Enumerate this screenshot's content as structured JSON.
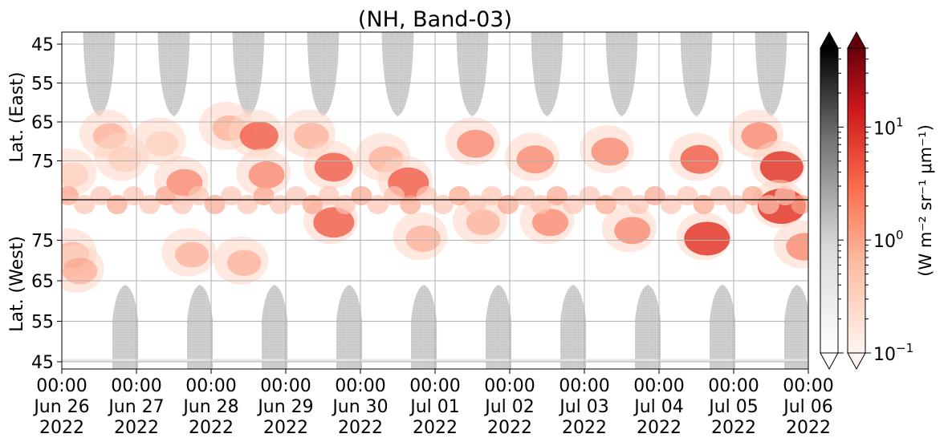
{
  "chart_data": {
    "type": "heatmap",
    "title": "(NH, Band-03)",
    "ylabel_top": "Lat. (East)",
    "ylabel_bottom": "Lat. (West)",
    "y_ticks_top": [
      "45",
      "55",
      "65",
      "75"
    ],
    "y_ticks_bottom": [
      "75",
      "65",
      "55",
      "45"
    ],
    "x_ticks": [
      {
        "time": "00:00",
        "date": "Jun 26",
        "year": "2022"
      },
      {
        "time": "00:00",
        "date": "Jun 27",
        "year": "2022"
      },
      {
        "time": "00:00",
        "date": "Jun 28",
        "year": "2022"
      },
      {
        "time": "00:00",
        "date": "Jun 29",
        "year": "2022"
      },
      {
        "time": "00:00",
        "date": "Jun 30",
        "year": "2022"
      },
      {
        "time": "00:00",
        "date": "Jul 01",
        "year": "2022"
      },
      {
        "time": "00:00",
        "date": "Jul 02",
        "year": "2022"
      },
      {
        "time": "00:00",
        "date": "Jul 03",
        "year": "2022"
      },
      {
        "time": "00:00",
        "date": "Jul 04",
        "year": "2022"
      },
      {
        "time": "00:00",
        "date": "Jul 05",
        "year": "2022"
      },
      {
        "time": "00:00",
        "date": "Jul 06",
        "year": "2022"
      }
    ],
    "grid": true,
    "colorbar": {
      "label": "(W m⁻² sr⁻¹ μm⁻¹)",
      "scale": "log",
      "range": [
        0.1,
        50
      ],
      "ticks": [
        {
          "base": "10",
          "exp": "−1",
          "value": 0.1
        },
        {
          "base": "10",
          "exp": "0",
          "value": 1
        },
        {
          "base": "10",
          "exp": "1",
          "value": 10
        }
      ],
      "cmap_gray": "Greys",
      "cmap_red": "Reds"
    },
    "colors": {
      "gray_mask": "#c8c8c8",
      "red_low": "#fee0d2",
      "red_mid": "#fb6a4a",
      "red_high": "#cb181d",
      "grid": "#b0b0b0"
    },
    "sunlit_lobes_top": [
      0.5,
      1.5,
      2.5,
      3.5,
      4.5,
      5.5,
      6.5,
      7.5,
      8.5,
      9.5
    ],
    "sunlit_lobes_bottom": [
      0.85,
      1.85,
      2.85,
      3.85,
      4.85,
      5.85,
      6.85,
      7.85,
      8.85,
      9.85
    ],
    "emission_clusters": [
      {
        "day": 0.1,
        "side": "top",
        "lat": 78,
        "intensity": 1.2
      },
      {
        "day": 0.1,
        "side": "bottom",
        "lat": 72,
        "intensity": 2.0
      },
      {
        "day": 0.2,
        "side": "bottom",
        "lat": 68,
        "intensity": 2.5
      },
      {
        "day": 0.6,
        "side": "top",
        "lat": 68,
        "intensity": 2.0
      },
      {
        "day": 0.8,
        "side": "top",
        "lat": 74,
        "intensity": 1.8
      },
      {
        "day": 1.3,
        "side": "top",
        "lat": 70,
        "intensity": 1.5
      },
      {
        "day": 1.6,
        "side": "top",
        "lat": 80,
        "intensity": 3.0
      },
      {
        "day": 1.7,
        "side": "bottom",
        "lat": 72,
        "intensity": 2.0
      },
      {
        "day": 2.2,
        "side": "top",
        "lat": 66,
        "intensity": 2.0
      },
      {
        "day": 2.4,
        "side": "bottom",
        "lat": 70,
        "intensity": 2.2
      },
      {
        "day": 2.6,
        "side": "top",
        "lat": 68,
        "intensity": 4.0
      },
      {
        "day": 2.7,
        "side": "top",
        "lat": 78,
        "intensity": 3.0
      },
      {
        "day": 3.3,
        "side": "top",
        "lat": 68,
        "intensity": 2.5
      },
      {
        "day": 3.6,
        "side": "top",
        "lat": 76,
        "intensity": 4.0
      },
      {
        "day": 3.6,
        "side": "bottom",
        "lat": 80,
        "intensity": 5.0
      },
      {
        "day": 4.3,
        "side": "top",
        "lat": 74,
        "intensity": 2.5
      },
      {
        "day": 4.6,
        "side": "top",
        "lat": 80,
        "intensity": 5.0
      },
      {
        "day": 4.8,
        "side": "bottom",
        "lat": 76,
        "intensity": 2.5
      },
      {
        "day": 5.5,
        "side": "top",
        "lat": 70,
        "intensity": 3.5
      },
      {
        "day": 5.6,
        "side": "bottom",
        "lat": 80,
        "intensity": 2.0
      },
      {
        "day": 6.3,
        "side": "top",
        "lat": 74,
        "intensity": 3.5
      },
      {
        "day": 6.5,
        "side": "bottom",
        "lat": 80,
        "intensity": 3.0
      },
      {
        "day": 7.3,
        "side": "top",
        "lat": 72,
        "intensity": 3.5
      },
      {
        "day": 7.6,
        "side": "bottom",
        "lat": 78,
        "intensity": 3.0
      },
      {
        "day": 8.5,
        "side": "top",
        "lat": 74,
        "intensity": 4.0
      },
      {
        "day": 8.6,
        "side": "bottom",
        "lat": 76,
        "intensity": 7.0
      },
      {
        "day": 9.3,
        "side": "top",
        "lat": 68,
        "intensity": 3.0
      },
      {
        "day": 9.6,
        "side": "top",
        "lat": 76,
        "intensity": 6.0
      },
      {
        "day": 9.6,
        "side": "bottom",
        "lat": 84,
        "intensity": 8.0
      },
      {
        "day": 9.9,
        "side": "bottom",
        "lat": 74,
        "intensity": 3.0
      }
    ]
  }
}
